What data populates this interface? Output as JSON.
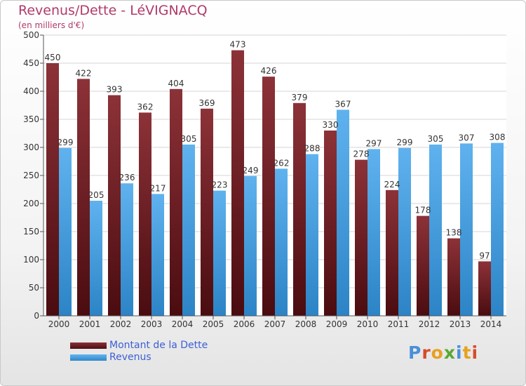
{
  "header": {
    "title": "Revenus/Dette - LéVIGNACQ",
    "subtitle": "(en milliers d'€)"
  },
  "legend": {
    "dette_label": "Montant de la Dette",
    "revenus_label": "Revenus"
  },
  "logo": {
    "text": "Proxiti",
    "letter_colors": [
      "#4a8fd8",
      "#d84a2a",
      "#e8a020",
      "#5aa832",
      "#4a8fd8",
      "#e8a020",
      "#d84a2a"
    ]
  },
  "chart_data": {
    "type": "bar",
    "categories": [
      "2000",
      "2001",
      "2002",
      "2003",
      "2004",
      "2005",
      "2006",
      "2007",
      "2008",
      "2009",
      "2010",
      "2011",
      "2012",
      "2013",
      "2014"
    ],
    "series": [
      {
        "name": "Montant de la Dette",
        "color": "#7a2228",
        "values": [
          450,
          422,
          393,
          362,
          404,
          369,
          473,
          426,
          379,
          330,
          278,
          224,
          178,
          138,
          97
        ]
      },
      {
        "name": "Revenus",
        "color": "#4aa3e6",
        "values": [
          299,
          205,
          236,
          217,
          305,
          223,
          249,
          262,
          288,
          367,
          297,
          299,
          305,
          307,
          308
        ]
      }
    ],
    "yticks": [
      0,
      50,
      100,
      150,
      200,
      250,
      300,
      350,
      400,
      450,
      500
    ],
    "ylim": [
      0,
      500
    ],
    "grid": true,
    "legend_position": "bottom-left"
  }
}
